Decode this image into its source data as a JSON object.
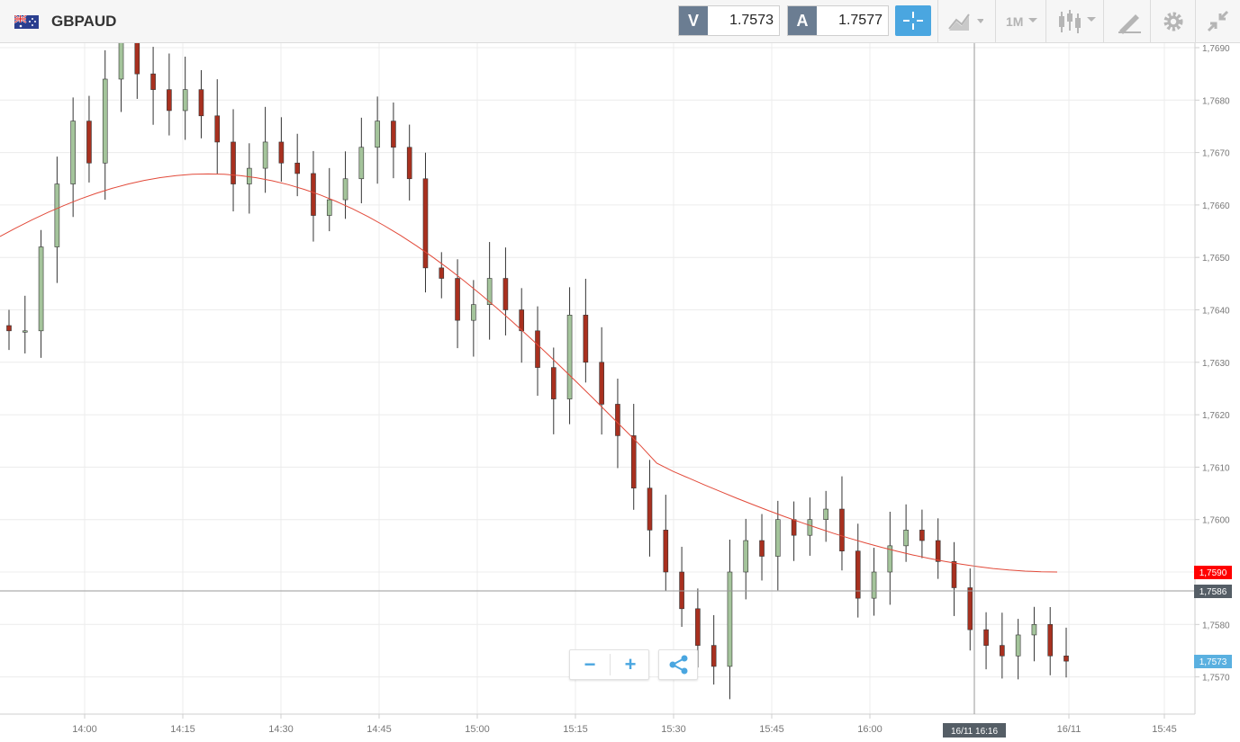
{
  "header": {
    "symbol": "GBPAUD",
    "flag_icon": "gb-au-flag-icon",
    "bid": {
      "tag": "V",
      "value": "1.7573"
    },
    "ask": {
      "tag": "A",
      "value": "1.7577"
    },
    "timeframe": "1M",
    "accent_color": "#4aa6e0"
  },
  "chart_data": {
    "type": "candlestick",
    "symbol": "GBPAUD",
    "interval": "1M",
    "y_ticks": [
      "1,7690",
      "1,7680",
      "1,7670",
      "1,7660",
      "1,7650",
      "1,7640",
      "1,7630",
      "1,7620",
      "1,7610",
      "1,7600",
      "1,7590",
      "1,7580",
      "1,7570"
    ],
    "x_ticks": [
      "14:00",
      "14:15",
      "14:30",
      "14:45",
      "15:00",
      "15:15",
      "15:30",
      "15:45",
      "16:00",
      "16/11",
      "15:45"
    ],
    "ylim": [
      1.7565,
      1.7692
    ],
    "grid": true,
    "crosshair": {
      "time_label": "16/11 16:16",
      "price_label": "1,7586"
    },
    "moving_average_label": "1,7590",
    "last_price_label": "1,7573",
    "colors": {
      "up": "#a4c49b",
      "down": "#a8301f",
      "ma": "#e24a3a",
      "ma_badge": "#ff0000",
      "crosshair_badge": "#555e66",
      "last_badge": "#5ab0e0"
    },
    "candles_close": [
      1.7636,
      1.7636,
      1.7652,
      1.7664,
      1.7676,
      1.7668,
      1.7684,
      1.7692,
      1.7685,
      1.7682,
      1.7678,
      1.7682,
      1.7677,
      1.7672,
      1.7664,
      1.7667,
      1.7672,
      1.7668,
      1.7666,
      1.7658,
      1.7661,
      1.7665,
      1.7671,
      1.7676,
      1.7671,
      1.7665,
      1.7648,
      1.7646,
      1.7638,
      1.7641,
      1.7646,
      1.764,
      1.7636,
      1.7629,
      1.7623,
      1.7639,
      1.763,
      1.7622,
      1.7616,
      1.7606,
      1.7598,
      1.759,
      1.7583,
      1.7576,
      1.7572,
      1.759,
      1.7596,
      1.7593,
      1.76,
      1.7597,
      1.76,
      1.7602,
      1.7594,
      1.7585,
      1.759,
      1.7595,
      1.7598,
      1.7596,
      1.7592,
      1.7587,
      1.7579,
      1.7576,
      1.7574,
      1.7578,
      1.758,
      1.7574,
      1.7573
    ],
    "ma_start": 1.7654,
    "ma_end": 1.759
  },
  "zoom": {
    "minus": "−",
    "plus": "+"
  }
}
